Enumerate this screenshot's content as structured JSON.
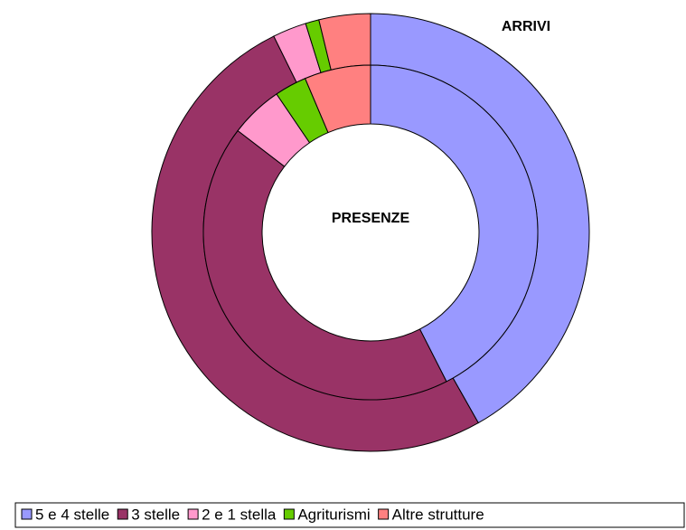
{
  "chart_data": {
    "type": "donut",
    "categories": [
      "5 e 4 stelle",
      "3 stelle",
      "2 e 1 stella",
      "Agriturismi",
      "Altre strutture"
    ],
    "colors": [
      "#9999ff",
      "#993366",
      "#ff99cc",
      "#66cc00",
      "#ff8080"
    ],
    "series": [
      {
        "name": "ARRIVI",
        "values": [
          41.8,
          50.9,
          2.5,
          1.0,
          3.8
        ]
      },
      {
        "name": "PRESENZE",
        "values": [
          42.5,
          42.9,
          5.1,
          3.1,
          6.4
        ]
      }
    ]
  }
}
